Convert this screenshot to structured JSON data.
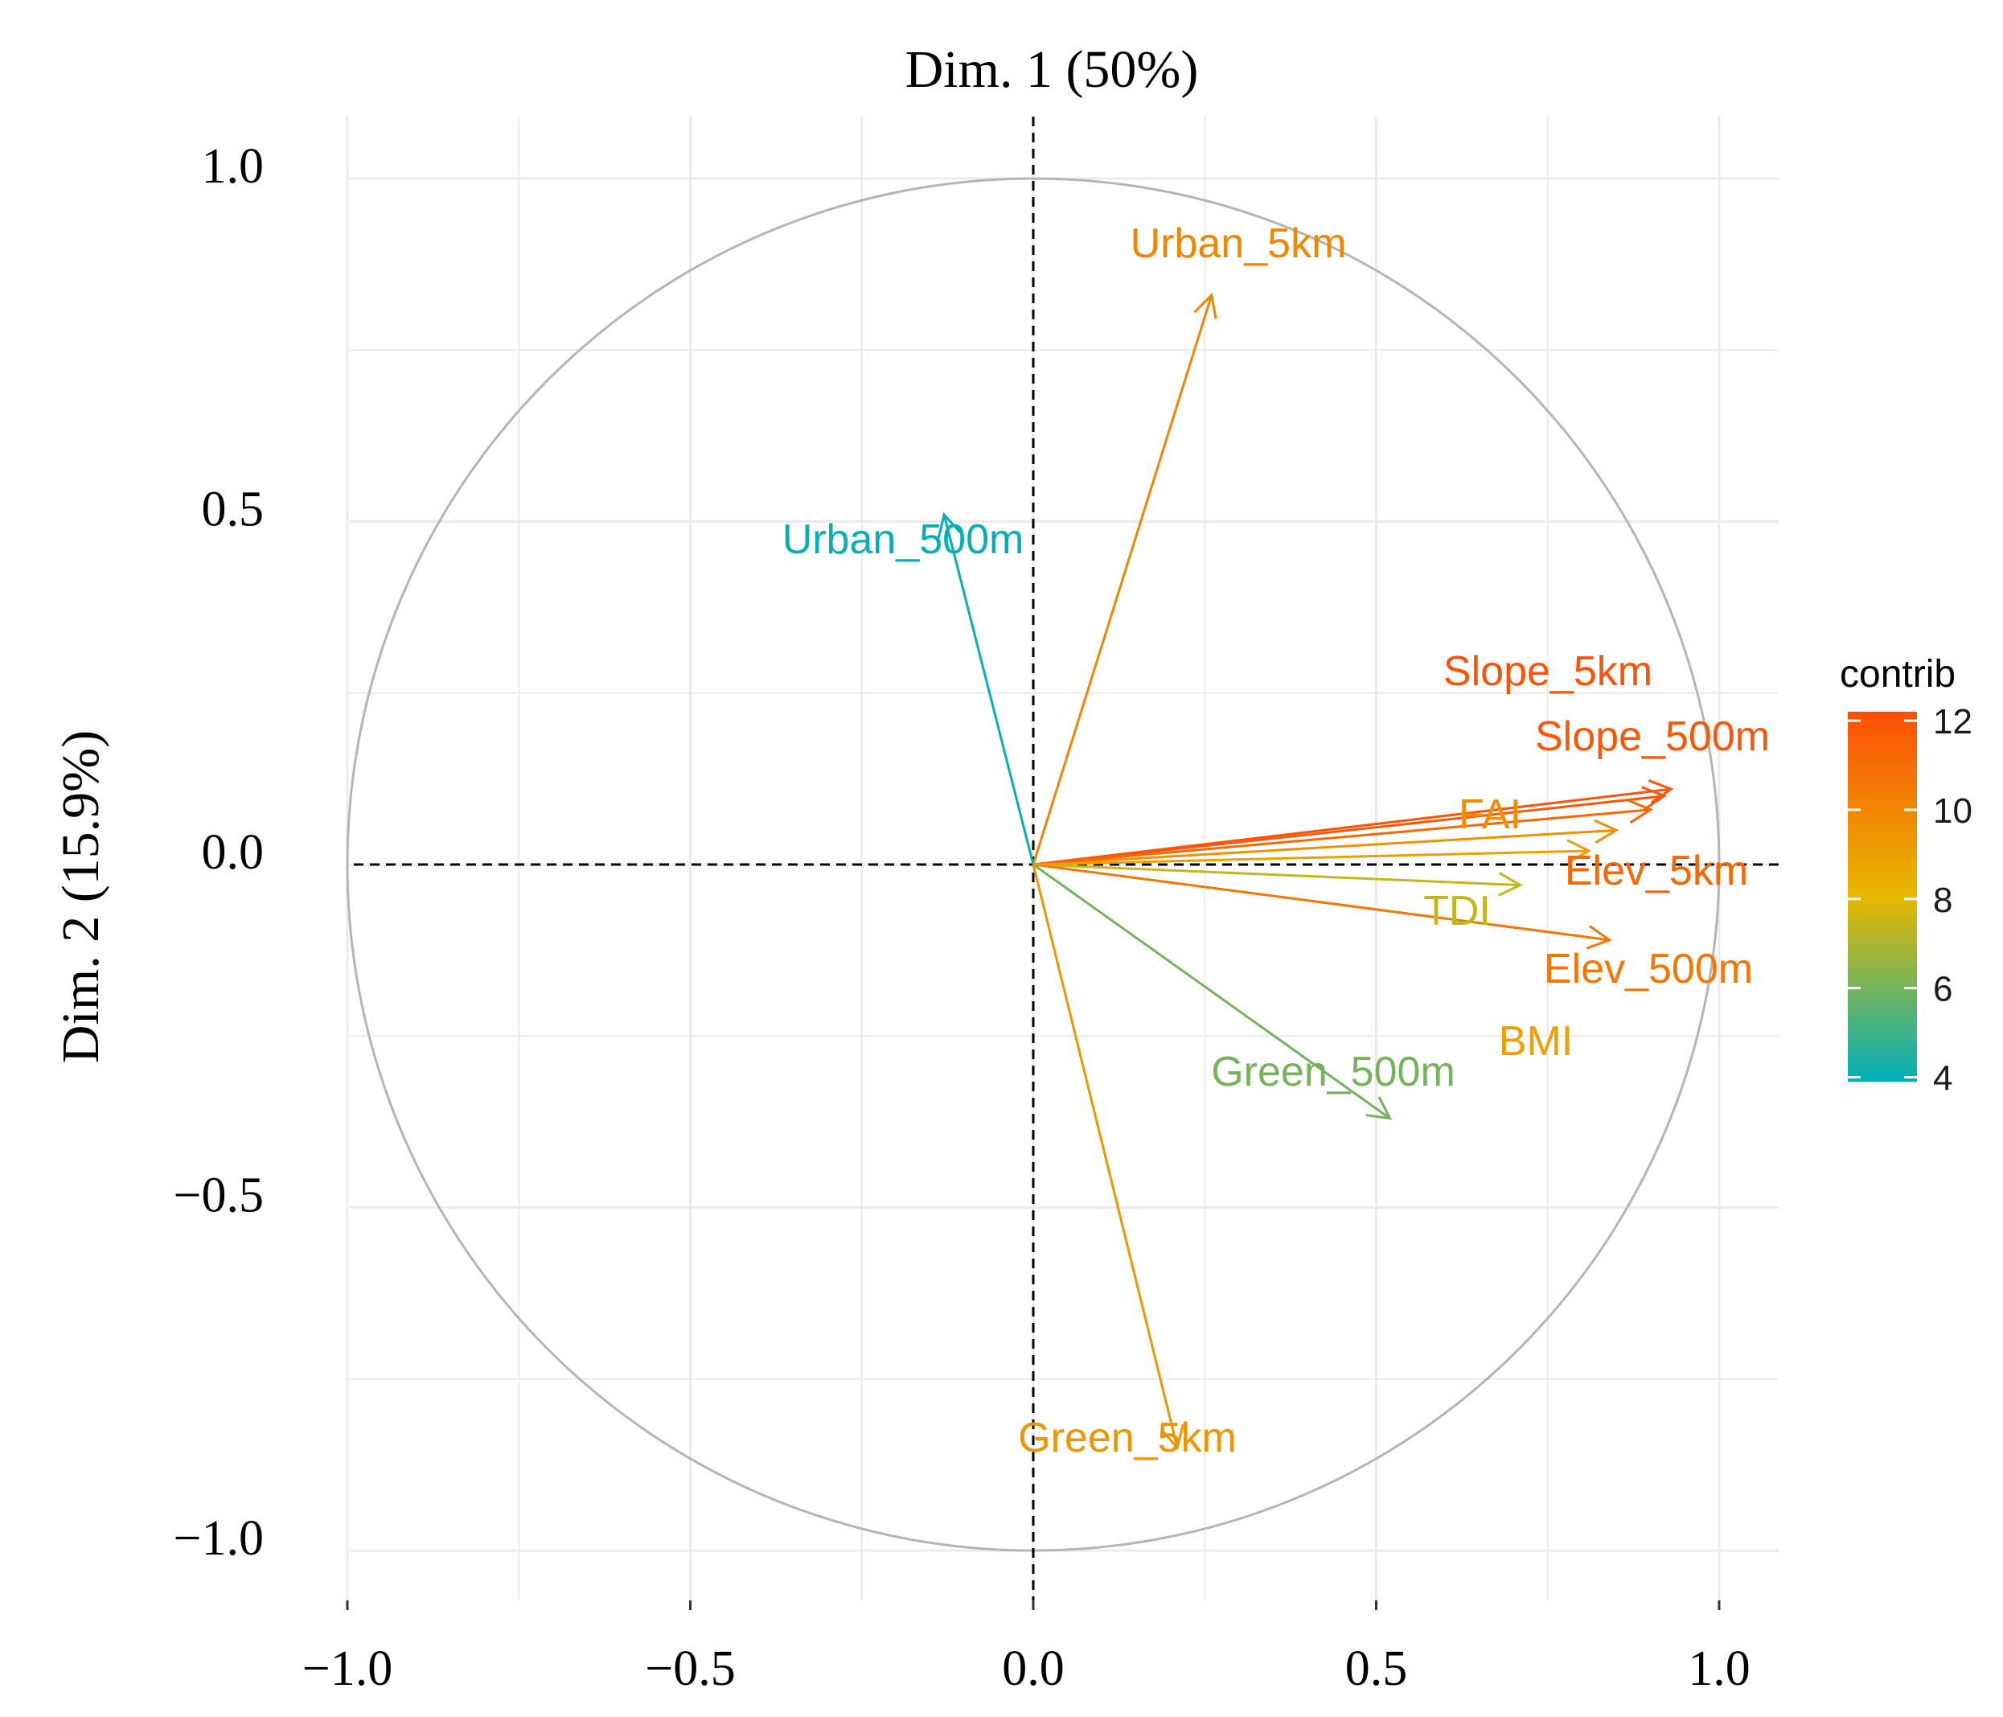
{
  "chart_data": {
    "type": "scatter",
    "subtype": "pca-variable-correlation-circle",
    "title": "Dim. 1 (50%)",
    "xlabel": "",
    "ylabel": "Dim. 2 (15.9%)",
    "xlim": [
      -1.0,
      1.1
    ],
    "ylim": [
      -1.07,
      1.02
    ],
    "x_ticks": [
      {
        "value": -1.0,
        "label": "−1.0"
      },
      {
        "value": -0.5,
        "label": "−0.5"
      },
      {
        "value": 0.0,
        "label": "0.0"
      },
      {
        "value": 0.5,
        "label": "0.5"
      },
      {
        "value": 1.0,
        "label": "1.0"
      }
    ],
    "y_ticks": [
      {
        "value": 1.0,
        "label": "1.0"
      },
      {
        "value": 0.5,
        "label": "0.5"
      },
      {
        "value": 0.0,
        "label": "0.0"
      },
      {
        "value": -0.5,
        "label": "−0.5"
      },
      {
        "value": -1.0,
        "label": "−1.0"
      }
    ],
    "grid": true,
    "unit_circle": true,
    "legend": {
      "title": "contrib",
      "position": "right",
      "min": 3.9,
      "max": 12.2,
      "ticks": [
        4,
        6,
        8,
        10,
        12
      ],
      "color_stops": [
        "#00AFBB",
        "#E7B800",
        "#FC4E07"
      ]
    },
    "variables": [
      {
        "name": "Urban_5km",
        "x": 0.26,
        "y": 0.83,
        "contrib": 10.0
      },
      {
        "name": "Urban_500m",
        "x": -0.13,
        "y": 0.51,
        "contrib": 4.0
      },
      {
        "name": "Slope_5km",
        "x": 0.93,
        "y": 0.11,
        "contrib": 12.0
      },
      {
        "name": "Slope_500m",
        "x": 0.92,
        "y": 0.1,
        "contrib": 11.8
      },
      {
        "name": "FAI",
        "x": 0.85,
        "y": 0.05,
        "contrib": 9.6
      },
      {
        "name": "Elev_5km",
        "x": 0.9,
        "y": 0.08,
        "contrib": 11.2
      },
      {
        "name": "TDI",
        "x": 0.71,
        "y": -0.03,
        "contrib": 7.4
      },
      {
        "name": "Elev_500m",
        "x": 0.84,
        "y": -0.11,
        "contrib": 10.6
      },
      {
        "name": "BMI",
        "x": 0.81,
        "y": 0.02,
        "contrib": 9.0
      },
      {
        "name": "Green_500m",
        "x": 0.52,
        "y": -0.37,
        "contrib": 6.0
      },
      {
        "name": "Green_5km",
        "x": 0.21,
        "y": -0.85,
        "contrib": 9.4
      }
    ]
  }
}
